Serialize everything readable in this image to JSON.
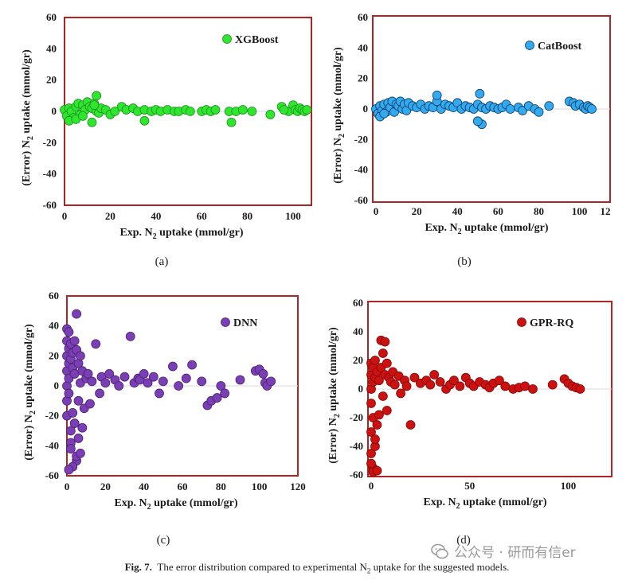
{
  "figure": {
    "caption_prefix": "Fig. 7.",
    "caption_text_a": "The error distribution compared to experimental N",
    "caption_sub": "2",
    "caption_text_b": " uptake for the suggested models.",
    "watermark": "公众号 · 研而有信er"
  },
  "chart_data": [
    {
      "panel": "(a)",
      "type": "scatter",
      "legend": "XGBoost",
      "color": "#2ee62e",
      "edge": "#1f8f1f",
      "xlabel_pre": "Exp. N",
      "xlabel_sub": "2",
      "xlabel_post": " uptake (mmol/gr)",
      "ylabel_pre": "(Error) N",
      "ylabel_sub": "2",
      "ylabel_post": " uptake (mmol/gr)",
      "xlim": [
        0,
        108
      ],
      "ylim": [
        -60,
        60
      ],
      "xticks": [
        0,
        20,
        40,
        60,
        80,
        100
      ],
      "yticks": [
        -60,
        -40,
        -20,
        0,
        20,
        40,
        60
      ],
      "x": [
        0,
        1,
        2,
        3,
        4,
        5,
        6,
        7,
        8,
        9,
        10,
        11,
        12,
        13,
        14,
        15,
        16,
        18,
        20,
        22,
        25,
        27,
        30,
        32,
        35,
        38,
        40,
        42,
        45,
        48,
        50,
        53,
        55,
        60,
        62,
        64,
        66,
        72,
        75,
        78,
        82,
        90,
        95,
        98,
        100,
        101,
        102,
        103,
        104,
        105,
        106,
        2,
        5,
        8,
        12,
        14,
        35,
        73,
        96,
        13
      ],
      "y": [
        1,
        -3,
        2,
        0,
        -4,
        3,
        5,
        -2,
        4,
        1,
        6,
        3,
        2,
        5,
        0,
        -1,
        2,
        1,
        -2,
        0,
        3,
        1,
        2,
        0,
        1,
        0,
        1,
        0,
        1,
        0,
        0,
        1,
        0,
        0,
        1,
        0,
        1,
        0,
        0,
        1,
        0,
        -2,
        3,
        0,
        4,
        1,
        0,
        2,
        1,
        0,
        1,
        -6,
        -5,
        -3,
        -7,
        10,
        -6,
        -7,
        1,
        4
      ]
    },
    {
      "panel": "(b)",
      "type": "scatter",
      "legend": "CatBoost",
      "color": "#33aaee",
      "edge": "#0a3a6a",
      "xlabel_pre": "Exp. N",
      "xlabel_sub": "2",
      "xlabel_post": " uptake (mmol/gr)",
      "ylabel_pre": "(Error) N",
      "ylabel_sub": "2",
      "ylabel_post": " uptake (mmol/gr)",
      "xlim": [
        0,
        115
      ],
      "ylim": [
        -60,
        60
      ],
      "xticks": [
        0,
        20,
        40,
        60,
        80,
        100
      ],
      "xticklabels": [
        "0",
        "20",
        "40",
        "60",
        "80",
        "100",
        "12"
      ],
      "xticks_extra": [
        115
      ],
      "yticks": [
        -60,
        -40,
        -20,
        0,
        20,
        40,
        60
      ],
      "x": [
        0,
        1,
        2,
        3,
        4,
        5,
        6,
        7,
        8,
        9,
        10,
        11,
        12,
        13,
        14,
        15,
        16,
        18,
        20,
        22,
        24,
        26,
        28,
        30,
        32,
        34,
        36,
        38,
        40,
        42,
        44,
        46,
        48,
        50,
        52,
        54,
        56,
        58,
        60,
        62,
        64,
        66,
        70,
        72,
        75,
        78,
        80,
        85,
        95,
        97,
        98,
        100,
        102,
        103,
        104,
        105,
        106,
        2,
        4,
        30,
        51,
        52,
        50
      ],
      "y": [
        0,
        -3,
        2,
        -1,
        3,
        -2,
        4,
        1,
        5,
        -2,
        3,
        2,
        5,
        0,
        3,
        -1,
        4,
        2,
        1,
        3,
        0,
        2,
        1,
        5,
        0,
        3,
        2,
        1,
        4,
        0,
        2,
        1,
        0,
        3,
        1,
        0,
        2,
        1,
        0,
        1,
        3,
        0,
        1,
        -1,
        2,
        0,
        -2,
        2,
        5,
        4,
        2,
        3,
        1,
        0,
        2,
        1,
        0,
        -5,
        -3,
        9,
        10,
        -10,
        -8
      ]
    },
    {
      "panel": "(c)",
      "type": "scatter",
      "legend": "DNN",
      "color": "#7b3fb5",
      "edge": "#4a2070",
      "xlabel_pre": "Exp. N",
      "xlabel_sub": "2",
      "xlabel_post": " uptake (mmol/gr)",
      "ylabel_pre": "(Error) N",
      "ylabel_sub": "2",
      "ylabel_post": " uptake (mmol/gr)",
      "xlim": [
        0,
        120
      ],
      "ylim": [
        -60,
        60
      ],
      "xticks": [
        0,
        20,
        40,
        60,
        80,
        100,
        120
      ],
      "yticks": [
        -60,
        -40,
        -20,
        0,
        20,
        40,
        60
      ],
      "x": [
        0,
        0,
        0,
        0,
        0,
        0,
        0,
        1,
        1,
        1,
        1,
        1,
        2,
        2,
        2,
        2,
        3,
        3,
        3,
        4,
        4,
        5,
        5,
        5,
        6,
        6,
        7,
        7,
        8,
        9,
        10,
        11,
        12,
        13,
        15,
        17,
        18,
        20,
        22,
        25,
        27,
        30,
        33,
        35,
        37,
        38,
        40,
        42,
        45,
        48,
        50,
        55,
        58,
        62,
        65,
        70,
        73,
        75,
        78,
        80,
        82,
        90,
        98,
        100,
        102,
        103,
        104,
        106,
        5,
        6,
        3,
        2,
        1,
        4,
        7,
        8
      ],
      "y": [
        38,
        30,
        20,
        10,
        0,
        -10,
        -20,
        36,
        25,
        15,
        5,
        -5,
        28,
        -30,
        -38,
        18,
        22,
        -18,
        12,
        30,
        8,
        48,
        24,
        -50,
        15,
        -10,
        20,
        2,
        10,
        -15,
        5,
        8,
        -12,
        3,
        28,
        -5,
        6,
        2,
        8,
        4,
        0,
        6,
        33,
        2,
        5,
        4,
        8,
        2,
        6,
        -5,
        3,
        13,
        0,
        5,
        14,
        3,
        -13,
        -10,
        -8,
        0,
        -5,
        4,
        10,
        11,
        8,
        2,
        0,
        3,
        -47,
        -35,
        -54,
        -42,
        -56,
        -25,
        -45,
        -28
      ]
    },
    {
      "panel": "(d)",
      "type": "scatter",
      "legend": "GPR-RQ",
      "color": "#cc1111",
      "edge": "#800808",
      "xlabel_pre": "Exp. N",
      "xlabel_sub": "2",
      "xlabel_post": " uptake (mmol/gr)",
      "ylabel_pre": "(Error) N",
      "ylabel_sub": "2",
      "ylabel_post": " uptake (mmol/gr)",
      "xlim": [
        0,
        122
      ],
      "ylim": [
        -60,
        60
      ],
      "xticks": [
        0,
        50,
        100
      ],
      "yticks": [
        -60,
        -40,
        -20,
        0,
        20,
        40,
        60
      ],
      "x": [
        0,
        0,
        0,
        0,
        0,
        0,
        1,
        1,
        1,
        1,
        2,
        2,
        2,
        3,
        3,
        4,
        5,
        5,
        6,
        6,
        7,
        7,
        8,
        8,
        9,
        10,
        11,
        12,
        14,
        15,
        17,
        18,
        20,
        22,
        25,
        28,
        30,
        32,
        35,
        38,
        40,
        42,
        45,
        48,
        50,
        52,
        55,
        58,
        60,
        62,
        65,
        68,
        72,
        75,
        78,
        82,
        92,
        98,
        100,
        102,
        104,
        106,
        1,
        2,
        0,
        3,
        4
      ],
      "y": [
        18,
        10,
        0,
        -10,
        -30,
        -45,
        15,
        5,
        -20,
        -55,
        8,
        -40,
        20,
        12,
        -25,
        6,
        34,
        15,
        25,
        -5,
        33,
        10,
        18,
        -15,
        8,
        5,
        12,
        3,
        9,
        -3,
        6,
        2,
        -25,
        8,
        4,
        6,
        3,
        10,
        5,
        0,
        3,
        6,
        2,
        8,
        4,
        2,
        5,
        3,
        1,
        4,
        6,
        2,
        0,
        1,
        2,
        0,
        3,
        7,
        4,
        2,
        1,
        0,
        -58,
        -35,
        -52,
        -57,
        -18
      ]
    }
  ]
}
